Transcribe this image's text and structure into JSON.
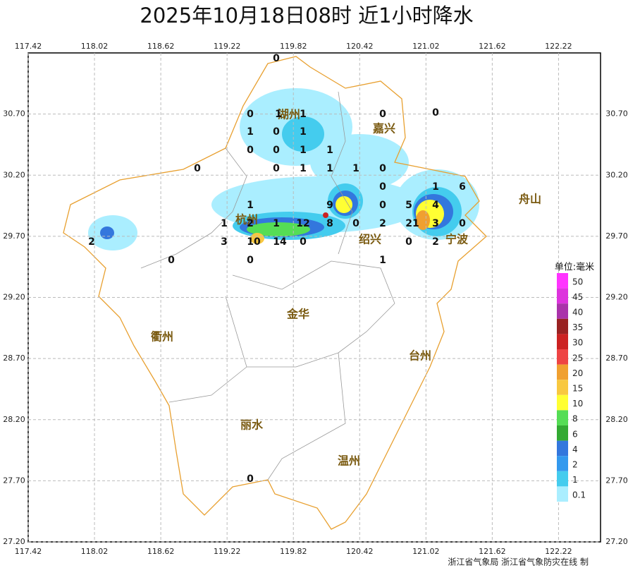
{
  "title": "2025年10月18日08时  近1小时降水",
  "map": {
    "xlim": [
      117.42,
      122.6
    ],
    "ylim": [
      27.2,
      31.2
    ],
    "xticks": [
      117.42,
      118.02,
      118.62,
      119.22,
      119.82,
      120.42,
      121.02,
      121.62,
      122.22
    ],
    "yticks": [
      {
        "value": 30.7,
        "label": "30.70"
      },
      {
        "value": 30.2,
        "label": "30.20"
      },
      {
        "value": 29.7,
        "label": "29.70"
      },
      {
        "value": 29.2,
        "label": "29.20"
      },
      {
        "value": 28.7,
        "label": "28.70"
      },
      {
        "value": 28.2,
        "label": "28.20"
      },
      {
        "value": 27.7,
        "label": "27.70"
      },
      {
        "value": 27.2,
        "label": "27.20"
      }
    ],
    "cities": [
      "湖州",
      "嘉兴",
      "杭州",
      "绍兴",
      "宁波",
      "舟山",
      "衢州",
      "金华",
      "台州",
      "丽水",
      "温州"
    ],
    "stations": [
      0,
      0,
      1,
      1,
      0,
      0,
      1,
      0,
      1,
      0,
      0,
      1,
      1,
      0,
      0,
      1,
      1,
      1,
      0,
      0,
      1,
      6,
      1,
      9,
      0,
      5,
      4,
      1,
      2,
      1,
      12,
      8,
      0,
      2,
      21,
      3,
      0,
      2,
      3,
      10,
      14,
      0,
      0,
      2,
      0,
      0,
      1,
      0
    ]
  },
  "legend": {
    "title": "单位:毫米",
    "levels": [
      50,
      45,
      40,
      35,
      30,
      25,
      20,
      15,
      10,
      8,
      6,
      4,
      2,
      1,
      0.1
    ],
    "colors": [
      "#ff33ff",
      "#dd33dd",
      "#aa33aa",
      "#992222",
      "#cc2222",
      "#ee4444",
      "#f0a030",
      "#f8c840",
      "#ffff33",
      "#55dd55",
      "#33aa33",
      "#3377dd",
      "#3399ee",
      "#44ccee",
      "#aaeeff"
    ]
  },
  "credit": "浙江省气象局 浙江省气象防灾在线 制"
}
